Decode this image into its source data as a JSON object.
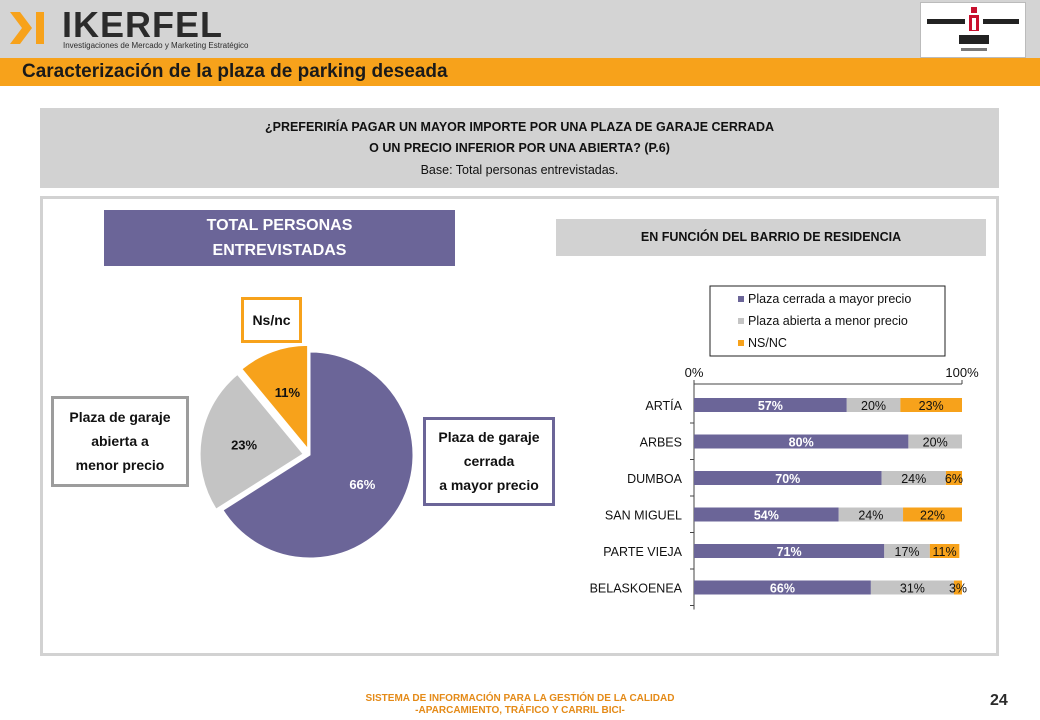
{
  "header": {
    "logo_name": "IKERFEL",
    "logo_tagline": "Investigaciones de Mercado y Marketing Estratégico",
    "page_title": "Caracterización de la plaza de parking deseada"
  },
  "question": {
    "line1": "¿PREFERIRÍA PAGAR UN MAYOR IMPORTE POR UNA PLAZA DE GARAJE CERRADA",
    "line2": "O UN PRECIO INFERIOR POR UNA ABIERTA? (P.6)",
    "base": "Base: Total personas entrevistadas."
  },
  "total_panel": {
    "header_line1": "TOTAL PERSONAS",
    "header_line2": "ENTREVISTADAS",
    "callout_nsnc": "Ns/nc",
    "callout_abierta": [
      "Plaza de garaje",
      "abierta a",
      "menor precio"
    ],
    "callout_cerrada": [
      "Plaza de garaje",
      "cerrada",
      "a mayor precio"
    ]
  },
  "barrio_panel": {
    "header": "EN FUNCIÓN DEL BARRIO DE RESIDENCIA"
  },
  "colors": {
    "cerrada": "#6b6598",
    "abierta": "#c4c4c4",
    "nsnc": "#f7a21b"
  },
  "chart_data": [
    {
      "type": "pie",
      "slices": [
        {
          "name": "Plaza cerrada a mayor precio",
          "value": 66,
          "label": "66%"
        },
        {
          "name": "Plaza abierta a menor precio",
          "value": 23,
          "label": "23%"
        },
        {
          "name": "NS/NC",
          "value": 11,
          "label": "11%"
        }
      ]
    },
    {
      "type": "bar",
      "stacked": true,
      "orientation": "horizontal",
      "categories": [
        "ARTÍA",
        "ARBES",
        "DUMBOA",
        "SAN MIGUEL",
        "PARTE VIEJA",
        "BELASKOENEA"
      ],
      "series": [
        {
          "name": "Plaza cerrada a mayor precio",
          "values": [
            57,
            80,
            70,
            54,
            71,
            66
          ],
          "labels": [
            "57%",
            "80%",
            "70%",
            "54%",
            "71%",
            "66%"
          ]
        },
        {
          "name": "Plaza abierta a menor precio",
          "values": [
            20,
            20,
            24,
            24,
            17,
            31
          ],
          "labels": [
            "20%",
            "20%",
            "24%",
            "24%",
            "17%",
            "31%"
          ]
        },
        {
          "name": "NS/NC",
          "values": [
            23,
            0,
            6,
            22,
            11,
            3
          ],
          "labels": [
            "23%",
            "",
            "6%",
            "22%",
            "11%",
            "3%"
          ]
        }
      ],
      "xlim": [
        0,
        100
      ],
      "axis_labels": [
        "0%",
        "100%"
      ],
      "legend_position": "top"
    }
  ],
  "footer": {
    "line1": "SISTEMA DE INFORMACIÓN PARA LA GESTIÓN DE LA CALIDAD",
    "line2": "-APARCAMIENTO, TRÁFICO Y CARRIL BICI-",
    "page_number": "24"
  }
}
